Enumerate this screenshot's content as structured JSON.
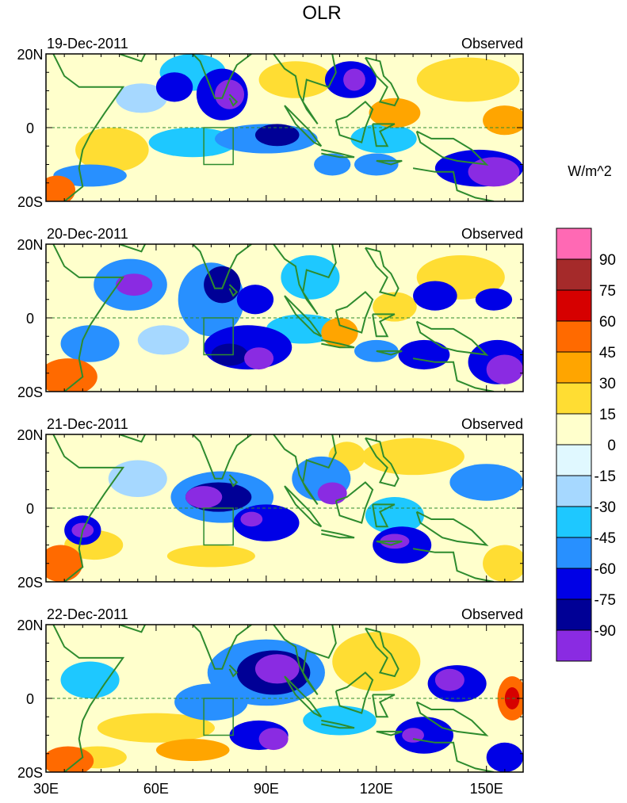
{
  "chart_data": {
    "type": "heatmap",
    "title": "OLR",
    "units": "W/m^2",
    "x_ticks": [
      "30E",
      "60E",
      "90E",
      "120E",
      "150E"
    ],
    "x_tick_values": [
      30,
      60,
      90,
      120,
      150
    ],
    "xlim": [
      30,
      160
    ],
    "y_ticks": [
      "20N",
      "0",
      "20S"
    ],
    "y_tick_values": [
      20,
      0,
      -20
    ],
    "ylim": [
      -20,
      20
    ],
    "colorbar": {
      "levels": [
        "90",
        "75",
        "60",
        "45",
        "30",
        "15",
        "0",
        "-15",
        "-30",
        "-45",
        "-60",
        "-75",
        "-90"
      ],
      "colors": [
        "#ff69b4",
        "#a52a2a",
        "#d60000",
        "#ff6a00",
        "#ffa500",
        "#ffdd33",
        "#ffffcc",
        "#e0f8ff",
        "#a6d8ff",
        "#1ec8ff",
        "#2890ff",
        "#0000e6",
        "#000096",
        "#8a2be2"
      ]
    },
    "panels": [
      {
        "date": "19-Dec-2011",
        "label": "Observed",
        "blobs": [
          {
            "lon": 48,
            "lat": -6,
            "rx": 10,
            "ry": 6,
            "v": 30
          },
          {
            "lon": 33,
            "lat": -17,
            "rx": 5,
            "ry": 4,
            "v": 60
          },
          {
            "lon": 42,
            "lat": -13,
            "rx": 10,
            "ry": 3,
            "v": -45
          },
          {
            "lon": 70,
            "lat": 15,
            "rx": 9,
            "ry": 5,
            "v": -30
          },
          {
            "lon": 56,
            "lat": 8,
            "rx": 7,
            "ry": 4,
            "v": -15
          },
          {
            "lon": 78,
            "lat": 9,
            "rx": 7,
            "ry": 7,
            "v": -60
          },
          {
            "lon": 80,
            "lat": 9,
            "rx": 4,
            "ry": 4,
            "v": -90
          },
          {
            "lon": 65,
            "lat": 11,
            "rx": 5,
            "ry": 4,
            "v": -60
          },
          {
            "lon": 98,
            "lat": 13,
            "rx": 10,
            "ry": 5,
            "v": 30
          },
          {
            "lon": 113,
            "lat": 13,
            "rx": 7,
            "ry": 5,
            "v": -60
          },
          {
            "lon": 114,
            "lat": 13,
            "rx": 3,
            "ry": 3,
            "v": -90
          },
          {
            "lon": 90,
            "lat": -3,
            "rx": 14,
            "ry": 4,
            "v": -45
          },
          {
            "lon": 93,
            "lat": -2,
            "rx": 6,
            "ry": 3,
            "v": -75
          },
          {
            "lon": 70,
            "lat": -4,
            "rx": 12,
            "ry": 4,
            "v": -30
          },
          {
            "lon": 85,
            "lat": -13,
            "rx": 10,
            "ry": 3,
            "v": 15
          },
          {
            "lon": 145,
            "lat": 13,
            "rx": 14,
            "ry": 6,
            "v": 30
          },
          {
            "lon": 125,
            "lat": 4,
            "rx": 7,
            "ry": 4,
            "v": 45
          },
          {
            "lon": 155,
            "lat": 2,
            "rx": 6,
            "ry": 4,
            "v": 45
          },
          {
            "lon": 148,
            "lat": -11,
            "rx": 12,
            "ry": 5,
            "v": -60
          },
          {
            "lon": 152,
            "lat": -12,
            "rx": 7,
            "ry": 4,
            "v": -90
          },
          {
            "lon": 120,
            "lat": -10,
            "rx": 6,
            "ry": 3,
            "v": -45
          },
          {
            "lon": 108,
            "lat": -10,
            "rx": 5,
            "ry": 3,
            "v": -45
          },
          {
            "lon": 122,
            "lat": -3,
            "rx": 9,
            "ry": 4,
            "v": -30
          },
          {
            "lon": 103,
            "lat": 1,
            "rx": 6,
            "ry": 4,
            "v": 15
          },
          {
            "lon": 135,
            "lat": -6,
            "rx": 5,
            "ry": 3,
            "v": 15
          }
        ]
      },
      {
        "date": "20-Dec-2011",
        "label": "Observed",
        "blobs": [
          {
            "lon": 36,
            "lat": -16,
            "rx": 8,
            "ry": 5,
            "v": 60
          },
          {
            "lon": 42,
            "lat": -7,
            "rx": 8,
            "ry": 5,
            "v": -45
          },
          {
            "lon": 53,
            "lat": 9,
            "rx": 10,
            "ry": 7,
            "v": -45
          },
          {
            "lon": 54,
            "lat": 9,
            "rx": 5,
            "ry": 3,
            "v": -90
          },
          {
            "lon": 75,
            "lat": 5,
            "rx": 9,
            "ry": 10,
            "v": -45
          },
          {
            "lon": 78,
            "lat": 9,
            "rx": 5,
            "ry": 5,
            "v": -75
          },
          {
            "lon": 87,
            "lat": 5,
            "rx": 5,
            "ry": 4,
            "v": -60
          },
          {
            "lon": 85,
            "lat": -8,
            "rx": 12,
            "ry": 6,
            "v": -60
          },
          {
            "lon": 80,
            "lat": -10,
            "rx": 5,
            "ry": 3,
            "v": -75
          },
          {
            "lon": 88,
            "lat": -11,
            "rx": 4,
            "ry": 3,
            "v": -90
          },
          {
            "lon": 100,
            "lat": -3,
            "rx": 10,
            "ry": 4,
            "v": -30
          },
          {
            "lon": 102,
            "lat": 11,
            "rx": 8,
            "ry": 6,
            "v": -30
          },
          {
            "lon": 118,
            "lat": 10,
            "rx": 6,
            "ry": 4,
            "v": 15
          },
          {
            "lon": 143,
            "lat": 11,
            "rx": 12,
            "ry": 6,
            "v": 30
          },
          {
            "lon": 125,
            "lat": 3,
            "rx": 6,
            "ry": 4,
            "v": 30
          },
          {
            "lon": 110,
            "lat": -4,
            "rx": 5,
            "ry": 4,
            "v": 45
          },
          {
            "lon": 136,
            "lat": 6,
            "rx": 6,
            "ry": 4,
            "v": -60
          },
          {
            "lon": 152,
            "lat": 5,
            "rx": 5,
            "ry": 3,
            "v": -60
          },
          {
            "lon": 153,
            "lat": -12,
            "rx": 8,
            "ry": 6,
            "v": -60
          },
          {
            "lon": 155,
            "lat": -14,
            "rx": 5,
            "ry": 4,
            "v": -90
          },
          {
            "lon": 133,
            "lat": -10,
            "rx": 7,
            "ry": 4,
            "v": -60
          },
          {
            "lon": 120,
            "lat": -9,
            "rx": 6,
            "ry": 3,
            "v": -45
          },
          {
            "lon": 62,
            "lat": -6,
            "rx": 7,
            "ry": 4,
            "v": -15
          },
          {
            "lon": 100,
            "lat": -13,
            "rx": 8,
            "ry": 3,
            "v": 15
          }
        ]
      },
      {
        "date": "21-Dec-2011",
        "label": "Observed",
        "blobs": [
          {
            "lon": 34,
            "lat": -15,
            "rx": 6,
            "ry": 5,
            "v": 60
          },
          {
            "lon": 43,
            "lat": -10,
            "rx": 8,
            "ry": 4,
            "v": 30
          },
          {
            "lon": 40,
            "lat": -6,
            "rx": 5,
            "ry": 4,
            "v": -60
          },
          {
            "lon": 40,
            "lat": -6,
            "rx": 3,
            "ry": 2,
            "v": -90
          },
          {
            "lon": 78,
            "lat": 3,
            "rx": 14,
            "ry": 7,
            "v": -45
          },
          {
            "lon": 77,
            "lat": 3,
            "rx": 9,
            "ry": 4,
            "v": -75
          },
          {
            "lon": 73,
            "lat": 3,
            "rx": 5,
            "ry": 3,
            "v": -90
          },
          {
            "lon": 90,
            "lat": -4,
            "rx": 9,
            "ry": 5,
            "v": -60
          },
          {
            "lon": 86,
            "lat": -3,
            "rx": 3,
            "ry": 2,
            "v": -90
          },
          {
            "lon": 75,
            "lat": -13,
            "rx": 12,
            "ry": 3,
            "v": 30
          },
          {
            "lon": 105,
            "lat": 8,
            "rx": 8,
            "ry": 6,
            "v": -45
          },
          {
            "lon": 108,
            "lat": 4,
            "rx": 4,
            "ry": 3,
            "v": -90
          },
          {
            "lon": 127,
            "lat": -10,
            "rx": 8,
            "ry": 5,
            "v": -60
          },
          {
            "lon": 125,
            "lat": -9,
            "rx": 4,
            "ry": 2,
            "v": -90
          },
          {
            "lon": 130,
            "lat": 14,
            "rx": 14,
            "ry": 5,
            "v": 30
          },
          {
            "lon": 150,
            "lat": 7,
            "rx": 10,
            "ry": 5,
            "v": -45
          },
          {
            "lon": 155,
            "lat": -15,
            "rx": 6,
            "ry": 5,
            "v": 30
          },
          {
            "lon": 125,
            "lat": -2,
            "rx": 8,
            "ry": 5,
            "v": -30
          },
          {
            "lon": 100,
            "lat": -14,
            "rx": 8,
            "ry": 4,
            "v": 15
          },
          {
            "lon": 55,
            "lat": 8,
            "rx": 8,
            "ry": 5,
            "v": -15
          },
          {
            "lon": 112,
            "lat": 14,
            "rx": 5,
            "ry": 4,
            "v": 30
          }
        ]
      },
      {
        "date": "22-Dec-2011",
        "label": "Observed",
        "blobs": [
          {
            "lon": 36,
            "lat": -17,
            "rx": 7,
            "ry": 4,
            "v": 60
          },
          {
            "lon": 44,
            "lat": -16,
            "rx": 8,
            "ry": 3,
            "v": 30
          },
          {
            "lon": 60,
            "lat": -8,
            "rx": 16,
            "ry": 4,
            "v": 30
          },
          {
            "lon": 90,
            "lat": 7,
            "rx": 16,
            "ry": 9,
            "v": -45
          },
          {
            "lon": 92,
            "lat": 7,
            "rx": 10,
            "ry": 6,
            "v": -75
          },
          {
            "lon": 93,
            "lat": 8,
            "rx": 6,
            "ry": 4,
            "v": -90
          },
          {
            "lon": 88,
            "lat": -10,
            "rx": 8,
            "ry": 4,
            "v": -60
          },
          {
            "lon": 92,
            "lat": -11,
            "rx": 4,
            "ry": 3,
            "v": -90
          },
          {
            "lon": 75,
            "lat": -1,
            "rx": 10,
            "ry": 5,
            "v": -45
          },
          {
            "lon": 120,
            "lat": 10,
            "rx": 12,
            "ry": 8,
            "v": 30
          },
          {
            "lon": 140,
            "lat": 14,
            "rx": 14,
            "ry": 5,
            "v": 15
          },
          {
            "lon": 142,
            "lat": 4,
            "rx": 8,
            "ry": 5,
            "v": -60
          },
          {
            "lon": 140,
            "lat": 5,
            "rx": 4,
            "ry": 3,
            "v": -90
          },
          {
            "lon": 133,
            "lat": -10,
            "rx": 8,
            "ry": 5,
            "v": -60
          },
          {
            "lon": 130,
            "lat": -10,
            "rx": 3,
            "ry": 2,
            "v": -90
          },
          {
            "lon": 157,
            "lat": 0,
            "rx": 4,
            "ry": 6,
            "v": 60
          },
          {
            "lon": 157,
            "lat": 0,
            "rx": 2,
            "ry": 3,
            "v": 75
          },
          {
            "lon": 155,
            "lat": -16,
            "rx": 5,
            "ry": 4,
            "v": -60
          },
          {
            "lon": 42,
            "lat": 5,
            "rx": 8,
            "ry": 5,
            "v": -30
          },
          {
            "lon": 110,
            "lat": -6,
            "rx": 10,
            "ry": 4,
            "v": -30
          },
          {
            "lon": 70,
            "lat": -14,
            "rx": 10,
            "ry": 3,
            "v": 45
          }
        ]
      }
    ]
  }
}
